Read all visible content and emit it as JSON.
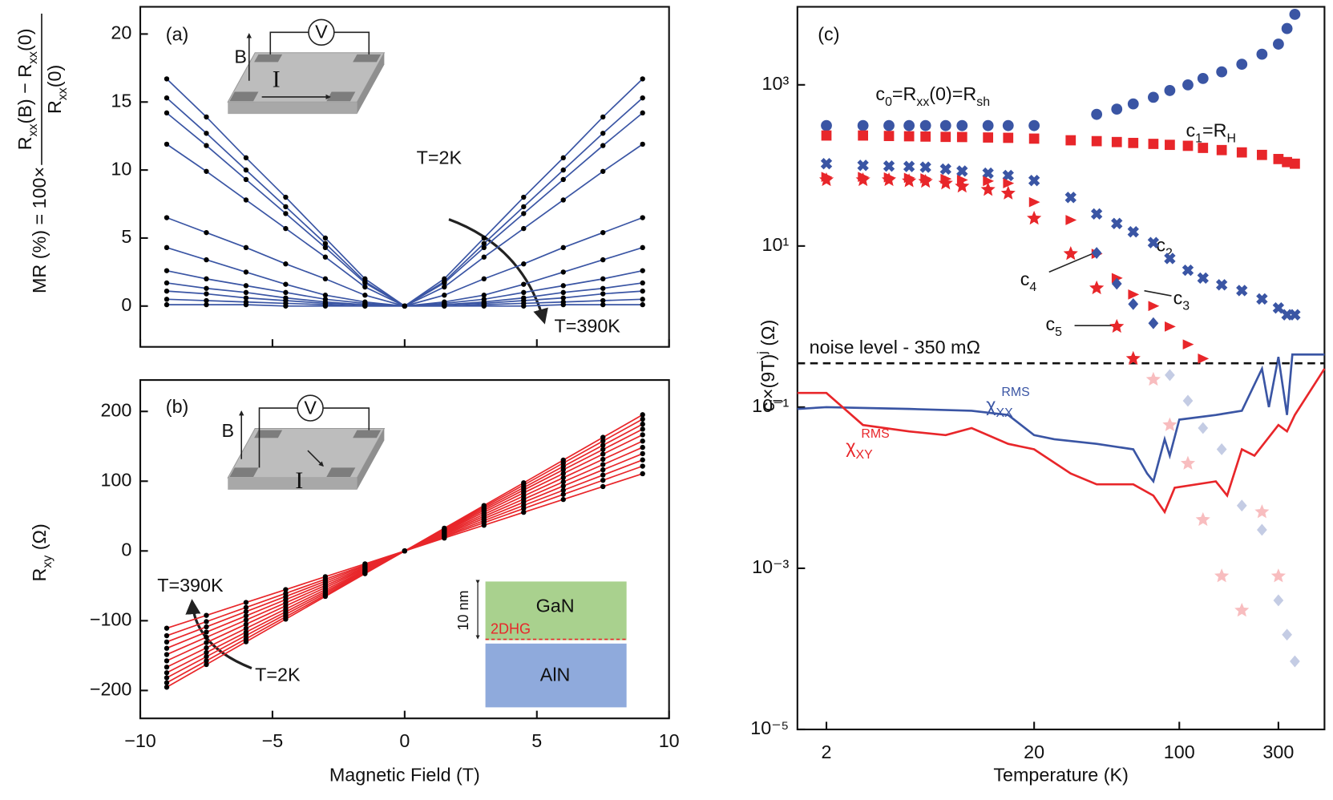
{
  "chart_data": [
    {
      "type": "line",
      "panel_label": "(a)",
      "ylabel": {
        "prefix": "MR (%) = 100×",
        "numerator": [
          "R",
          "xx",
          "(B) − R",
          "xx",
          "(0)"
        ],
        "denominator": [
          "R",
          "xx",
          "(0)"
        ]
      },
      "annotations": [
        "T=2K",
        "T=390K"
      ],
      "inset_labels": [
        "B",
        "V",
        "I"
      ],
      "xlim": [
        -10,
        10
      ],
      "xticks": [
        -10,
        -5,
        0,
        5,
        10
      ],
      "ylim": [
        -3,
        22
      ],
      "yticks": [
        0,
        5,
        10,
        15,
        20
      ],
      "color": "#3a55a4",
      "marker_color": "#000000",
      "x": [
        -9,
        -7.5,
        -6,
        -4.5,
        -3,
        -1.5,
        0,
        1.5,
        3,
        4.5,
        6,
        7.5,
        9
      ],
      "series": [
        {
          "values": [
            16.7,
            13.9,
            10.9,
            8.0,
            5.0,
            2.0,
            0,
            2.0,
            5.0,
            8.0,
            10.9,
            13.9,
            16.7
          ]
        },
        {
          "values": [
            15.3,
            12.7,
            10.0,
            7.3,
            4.6,
            1.8,
            0,
            1.8,
            4.6,
            7.3,
            10.0,
            12.7,
            15.3
          ]
        },
        {
          "values": [
            14.2,
            11.8,
            9.3,
            6.8,
            4.3,
            1.7,
            0,
            1.7,
            4.3,
            6.8,
            9.3,
            11.8,
            14.2
          ]
        },
        {
          "values": [
            11.9,
            9.9,
            7.8,
            5.7,
            3.6,
            1.4,
            0,
            1.4,
            3.6,
            5.7,
            7.8,
            9.9,
            11.9
          ]
        },
        {
          "values": [
            6.5,
            5.4,
            4.3,
            3.1,
            2.0,
            0.8,
            0,
            0.8,
            2.0,
            3.1,
            4.3,
            5.4,
            6.5
          ]
        },
        {
          "values": [
            4.3,
            3.4,
            2.5,
            1.6,
            0.8,
            0.3,
            0,
            0.3,
            0.8,
            1.6,
            2.5,
            3.4,
            4.3
          ]
        },
        {
          "values": [
            2.6,
            2.0,
            1.5,
            1.0,
            0.5,
            0.2,
            0,
            0.2,
            0.5,
            1.0,
            1.5,
            2.0,
            2.6
          ]
        },
        {
          "values": [
            1.7,
            1.3,
            1.0,
            0.6,
            0.3,
            0.1,
            0,
            0.1,
            0.3,
            0.6,
            1.0,
            1.3,
            1.7
          ]
        },
        {
          "values": [
            1.1,
            0.9,
            0.6,
            0.4,
            0.2,
            0.1,
            0,
            0.1,
            0.2,
            0.4,
            0.6,
            0.9,
            1.1
          ]
        },
        {
          "values": [
            0.5,
            0.4,
            0.3,
            0.2,
            0.1,
            0,
            0,
            0,
            0.1,
            0.2,
            0.3,
            0.4,
            0.5
          ]
        },
        {
          "values": [
            0.1,
            0.1,
            0.1,
            0,
            0,
            0,
            0,
            0,
            0,
            0,
            0.1,
            0.1,
            0.1
          ]
        }
      ]
    },
    {
      "type": "line",
      "panel_label": "(b)",
      "xlabel": "Magnetic Field (T)",
      "ylabel": [
        "R",
        "xy",
        " (Ω)"
      ],
      "annotations": [
        "T=390K",
        "T=2K"
      ],
      "inset_labels": [
        "B",
        "V",
        "I"
      ],
      "layers": {
        "top": "GaN",
        "interface": "2DHG",
        "bottom": "AlN",
        "thickness": "10 nm"
      },
      "xlim": [
        -10,
        10
      ],
      "xticks": [
        {
          "value": -10,
          "label": "−10"
        },
        {
          "value": -5,
          "label": "−5"
        },
        0,
        5,
        10
      ],
      "ylim": [
        -240,
        245
      ],
      "yticks": [
        {
          "value": -200,
          "label": "−200"
        },
        {
          "value": -100,
          "label": "−100"
        },
        0,
        100,
        200
      ],
      "color": "#e8262a",
      "marker_color": "#000000",
      "x": [
        -9,
        -7.5,
        -6,
        -4.5,
        -3,
        -1.5,
        0,
        1.5,
        3,
        4.5,
        6,
        7.5,
        9
      ],
      "series": [
        {
          "values": [
            -195.3,
            -162.8,
            -130.2,
            -97.7,
            -65.1,
            -32.6,
            0,
            32.6,
            65.1,
            97.7,
            130.2,
            162.8,
            195.3
          ]
        },
        {
          "values": [
            -189,
            -157.5,
            -126,
            -94.5,
            -63,
            -31.5,
            0,
            31.5,
            63,
            94.5,
            126,
            157.5,
            189
          ]
        },
        {
          "values": [
            -181.8,
            -151.5,
            -121.2,
            -90.9,
            -60.6,
            -30.3,
            0,
            30.3,
            60.6,
            90.9,
            121.2,
            151.5,
            181.8
          ]
        },
        {
          "values": [
            -174.6,
            -145.5,
            -116.4,
            -87.3,
            -58.2,
            -29.1,
            0,
            29.1,
            58.2,
            87.3,
            116.4,
            145.5,
            174.6
          ]
        },
        {
          "values": [
            -166.5,
            -138.8,
            -111,
            -83.3,
            -55.5,
            -27.8,
            0,
            27.8,
            55.5,
            83.3,
            111,
            138.8,
            166.5
          ]
        },
        {
          "values": [
            -157.5,
            -131.3,
            -105,
            -78.8,
            -52.5,
            -26.3,
            0,
            26.3,
            52.5,
            78.8,
            105,
            131.3,
            157.5
          ]
        },
        {
          "values": [
            -148.5,
            -123.8,
            -99,
            -74.3,
            -49.5,
            -24.8,
            0,
            24.8,
            49.5,
            74.3,
            99,
            123.8,
            148.5
          ]
        },
        {
          "values": [
            -139.5,
            -116.3,
            -93,
            -69.8,
            -46.5,
            -23.3,
            0,
            23.3,
            46.5,
            69.8,
            93,
            116.3,
            139.5
          ]
        },
        {
          "values": [
            -130.5,
            -108.8,
            -87,
            -65.3,
            -43.5,
            -21.8,
            0,
            21.8,
            43.5,
            65.3,
            87,
            108.8,
            130.5
          ]
        },
        {
          "values": [
            -121.5,
            -101.3,
            -81,
            -60.8,
            -40.5,
            -20.3,
            0,
            20.3,
            40.5,
            60.8,
            81,
            101.3,
            121.5
          ]
        },
        {
          "values": [
            -110.7,
            -92.3,
            -73.8,
            -55.4,
            -36.9,
            -18.5,
            0,
            18.5,
            36.9,
            55.4,
            73.8,
            92.3,
            110.7
          ]
        }
      ]
    },
    {
      "type": "scatter",
      "panel_label": "(c)",
      "xlabel": "Temperature (K)",
      "ylabel": [
        "c",
        "j",
        "×(9T)",
        "j",
        " (Ω)"
      ],
      "xlog": true,
      "ylog": true,
      "xlim": [
        1.45,
        500
      ],
      "xticks": [
        2,
        20,
        100,
        300
      ],
      "ylim": [
        1e-05,
        9300
      ],
      "yticks": [
        {
          "value": 1e-05,
          "label": "10⁻⁵"
        },
        {
          "value": 0.001,
          "label": "10⁻³"
        },
        {
          "value": 0.1,
          "label": "10⁻¹"
        },
        {
          "value": 10,
          "label": "10¹"
        },
        {
          "value": 1000,
          "label": "10³"
        }
      ],
      "noise_level": 0.35,
      "noise_label": "noise level - 350 mΩ",
      "x": [
        2,
        3,
        4,
        5,
        6,
        7.5,
        9,
        12,
        15,
        20,
        30,
        40,
        50,
        60,
        75,
        90,
        110,
        130,
        160,
        200,
        250,
        300,
        330,
        360
      ],
      "series": [
        {
          "label": [
            "c",
            "0",
            "=R",
            "xx",
            "(0)=R",
            "sh"
          ],
          "marker": "circle",
          "color": "#3a55a4",
          "values": [
            312,
            312,
            312,
            312,
            312,
            312,
            312,
            312,
            312,
            312,
            null,
            430,
            500,
            580,
            700,
            850,
            1000,
            1200,
            1450,
            1800,
            2400,
            3200,
            5000,
            7500
          ]
        },
        {
          "label": [
            "c",
            "1",
            "=R",
            "H"
          ],
          "marker": "square",
          "color": "#e8262a",
          "values": [
            235,
            235,
            232,
            230,
            228,
            226,
            225,
            222,
            220,
            215,
            205,
            200,
            195,
            190,
            185,
            180,
            175,
            165,
            155,
            145,
            135,
            120,
            110,
            105
          ]
        },
        {
          "label": [
            "c",
            "2"
          ],
          "marker": "cross",
          "color": "#3a55a4",
          "values": [
            105,
            100,
            98,
            97,
            95,
            90,
            85,
            80,
            75,
            65,
            40,
            25,
            19,
            15,
            11,
            7,
            5,
            4,
            3.3,
            2.8,
            2.2,
            1.7,
            1.4,
            1.4
          ]
        },
        {
          "label": [
            "c",
            "3"
          ],
          "marker": "triangle",
          "color": "#e8262a",
          "values": [
            72,
            72,
            71,
            70,
            69,
            68,
            66,
            64,
            60,
            35,
            21,
            8,
            4,
            2.5,
            1.8,
            1.0,
            0.6,
            0.4,
            null,
            null,
            null,
            null,
            null,
            null
          ]
        },
        {
          "label": [
            "c",
            "4"
          ],
          "marker": "diamond",
          "color": "#3a55a4",
          "values": [
            null,
            null,
            null,
            null,
            null,
            null,
            null,
            null,
            null,
            null,
            null,
            8.2,
            3.4,
            1.9,
            1.1,
            0.25,
            0.12,
            0.055,
            0.03,
            0.006,
            0.003,
            0.0004,
            0.00015,
            7e-05
          ]
        },
        {
          "label": [
            "c",
            "5"
          ],
          "marker": "star",
          "color": "#e8262a",
          "values": [
            66,
            66,
            66,
            64,
            63,
            60,
            55,
            50,
            45,
            22,
            8,
            3,
            1.0,
            0.4,
            0.22,
            0.06,
            0.02,
            0.004,
            0.0008,
            0.0003,
            0.005,
            0.0008,
            null,
            null
          ]
        }
      ],
      "curves": [
        {
          "label": [
            "χ",
            "XX",
            "RMS"
          ],
          "color": "#3a55a4",
          "x": [
            1.45,
            2,
            5,
            10,
            15,
            20,
            25,
            40,
            60,
            70,
            75,
            85,
            90,
            100,
            150,
            200,
            250,
            270,
            300,
            330,
            350,
            400,
            500
          ],
          "values": [
            0.095,
            0.1,
            0.095,
            0.09,
            0.08,
            0.045,
            0.04,
            0.035,
            0.03,
            0.015,
            0.012,
            0.04,
            0.025,
            0.07,
            0.08,
            0.09,
            0.3,
            0.1,
            0.42,
            0.08,
            0.45,
            0.45,
            0.45
          ]
        },
        {
          "label": [
            "χ",
            "XY",
            "RMS"
          ],
          "color": "#e8262a",
          "x": [
            1.45,
            2,
            3,
            5,
            7.5,
            10,
            15,
            20,
            30,
            40,
            60,
            75,
            85,
            95,
            150,
            170,
            200,
            230,
            300,
            330,
            360,
            500
          ],
          "values": [
            0.15,
            0.15,
            0.06,
            0.05,
            0.045,
            0.055,
            0.035,
            0.03,
            0.015,
            0.011,
            0.011,
            0.008,
            0.005,
            0.01,
            0.012,
            0.008,
            0.03,
            0.025,
            0.06,
            0.05,
            0.08,
            0.3
          ]
        }
      ]
    }
  ]
}
